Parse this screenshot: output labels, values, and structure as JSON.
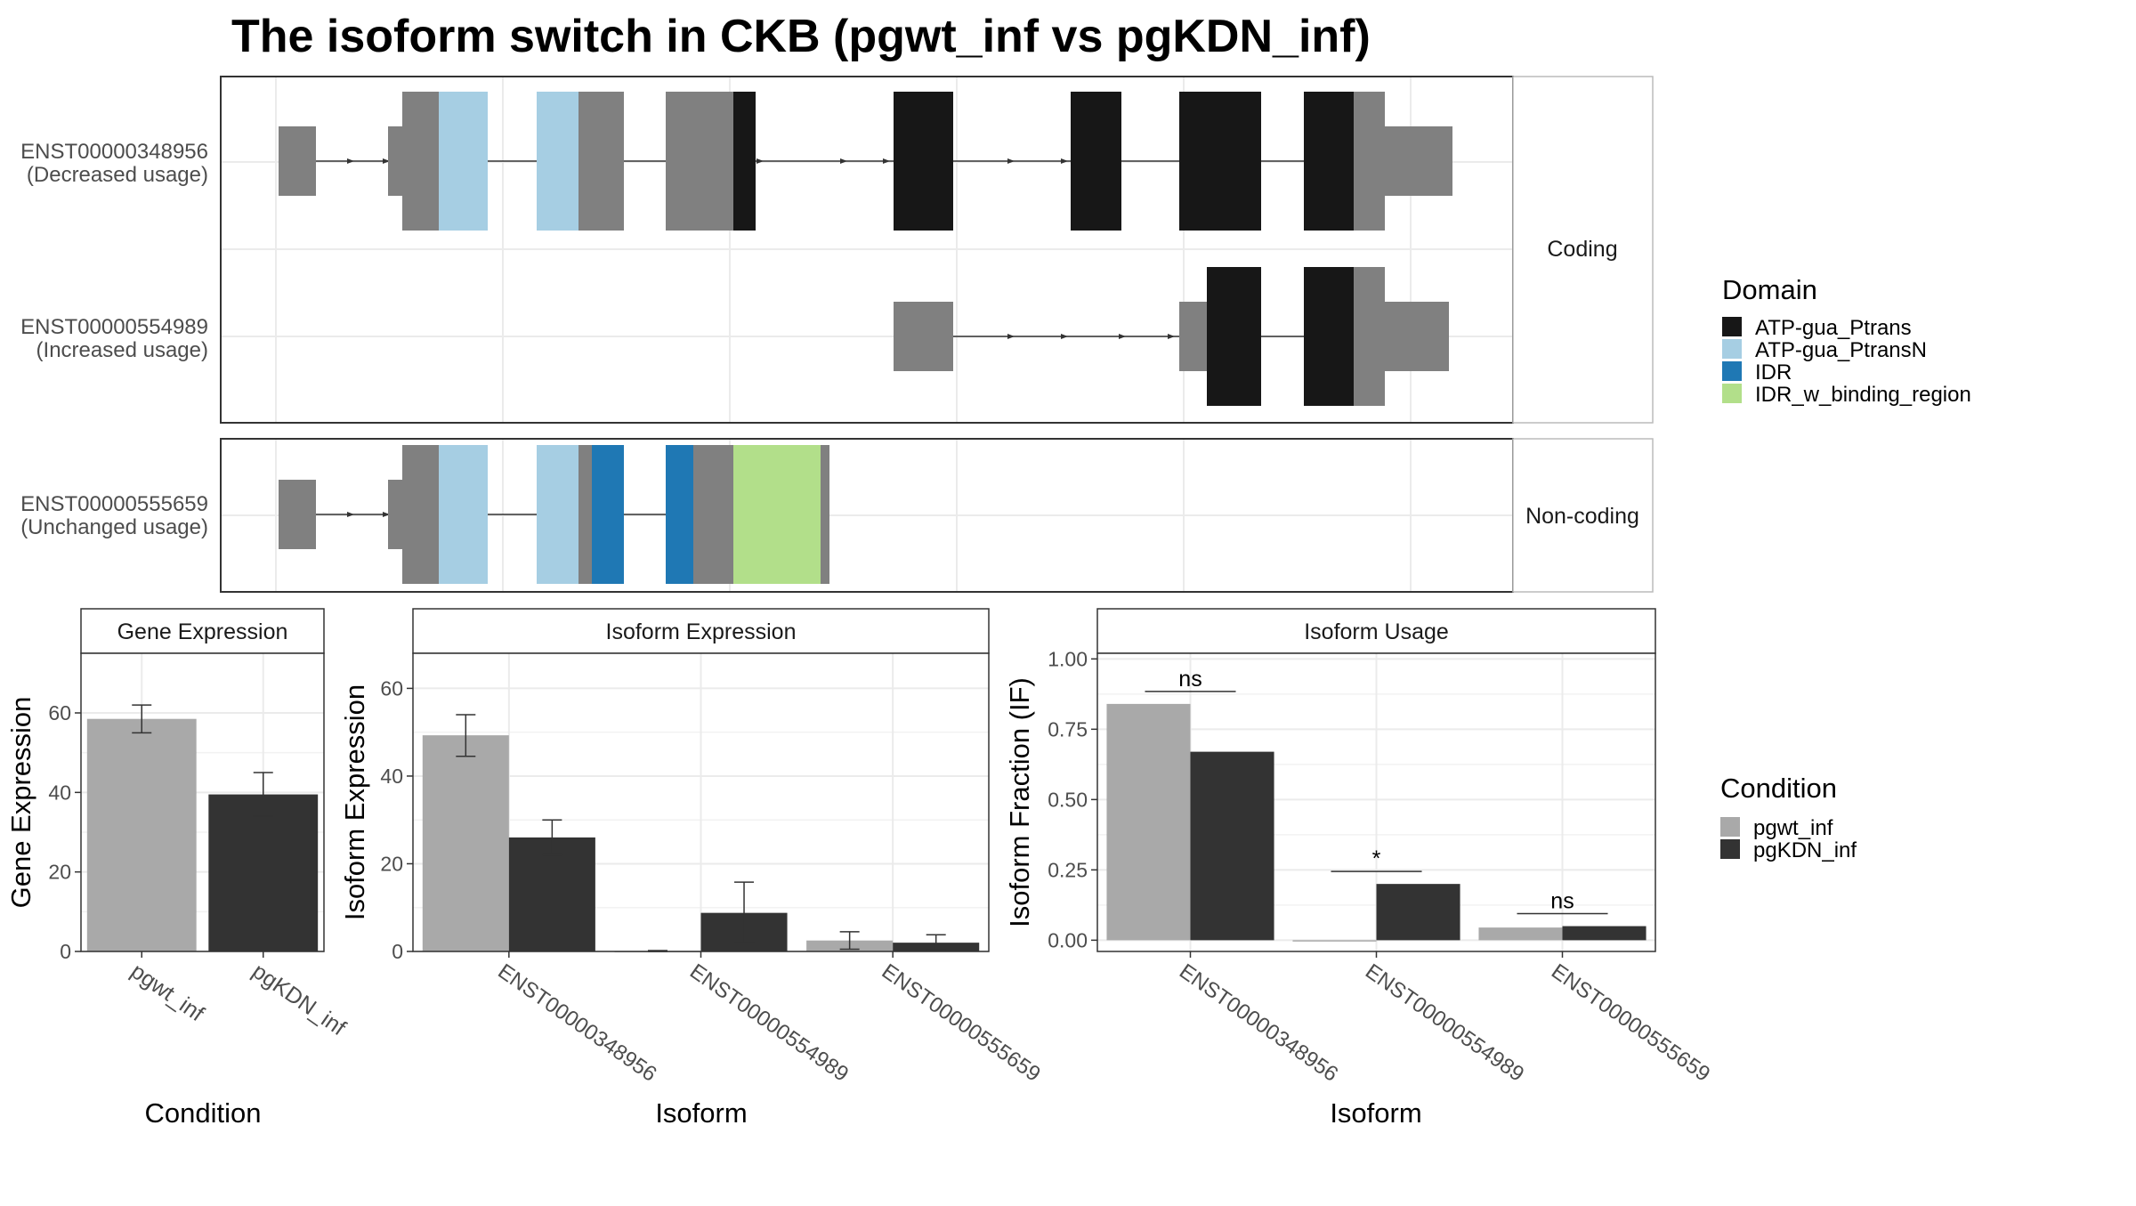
{
  "title": "The isoform switch in CKB (pgwt_inf vs pgKDN_inf)",
  "colors": {
    "ATP-gua_Ptrans": "#171717",
    "ATP-gua_PtransN": "#a6cee3",
    "IDR": "#1f78b4",
    "IDR_w_binding_region": "#b2df8a",
    "utr": "#808080",
    "pgwt_inf": "#a9a9a9",
    "pgKDN_inf": "#333333",
    "grid": "#ebebeb"
  },
  "structure": {
    "coding_strip": "Coding",
    "noncoding_strip": "Non-coding",
    "isoforms": [
      {
        "id": "ENST00000348956",
        "usage": "(Decreased usage)",
        "panel": "coding"
      },
      {
        "id": "ENST00000554989",
        "usage": "(Increased usage)",
        "panel": "coding"
      },
      {
        "id": "ENST00000555659",
        "usage": "(Unchanged usage)",
        "panel": "noncoding"
      }
    ]
  },
  "legends": {
    "domain": {
      "title": "Domain",
      "items": [
        "ATP-gua_Ptrans",
        "ATP-gua_PtransN",
        "IDR",
        "IDR_w_binding_region"
      ]
    },
    "condition": {
      "title": "Condition",
      "items": [
        "pgwt_inf",
        "pgKDN_inf"
      ]
    }
  },
  "chart_data": [
    {
      "type": "bar",
      "title": "Gene Expression",
      "xlabel": "Condition",
      "ylabel": "Gene Expression",
      "categories": [
        "pgwt_inf",
        "pgKDN_inf"
      ],
      "values": [
        58.5,
        39.5
      ],
      "error": [
        [
          55,
          62
        ],
        [
          34,
          45
        ]
      ],
      "ylim": [
        0,
        75
      ],
      "yticks": [
        0,
        20,
        40,
        60
      ]
    },
    {
      "type": "bar",
      "title": "Isoform Expression",
      "xlabel": "Isoform",
      "ylabel": "Isoform Expression",
      "categories": [
        "ENST00000348956",
        "ENST00000554989",
        "ENST00000555659"
      ],
      "series": [
        {
          "name": "pgwt_inf",
          "values": [
            49.3,
            0.1,
            2.5
          ],
          "error": [
            [
              44.5,
              54
            ],
            [
              0,
              0.2
            ],
            [
              0.5,
              4.5
            ]
          ]
        },
        {
          "name": "pgKDN_inf",
          "values": [
            26,
            8.8,
            2.0
          ],
          "error": [
            [
              22,
              30
            ],
            [
              2,
              15.8
            ],
            [
              0.3,
              3.8
            ]
          ]
        }
      ],
      "ylim": [
        0,
        68
      ],
      "yticks": [
        0,
        20,
        40,
        60
      ]
    },
    {
      "type": "bar",
      "title": "Isoform Usage",
      "xlabel": "Isoform",
      "ylabel": "Isoform Fraction (IF)",
      "categories": [
        "ENST00000348956",
        "ENST00000554989",
        "ENST00000555659"
      ],
      "series": [
        {
          "name": "pgwt_inf",
          "values": [
            0.84,
            0.0,
            0.045
          ]
        },
        {
          "name": "pgKDN_inf",
          "values": [
            0.67,
            0.2,
            0.05
          ]
        }
      ],
      "significance": [
        "ns",
        "*",
        "ns"
      ],
      "ylim": [
        -0.04,
        1.02
      ],
      "yticks": [
        "0.00",
        "0.25",
        "0.50",
        "0.75",
        "1.00"
      ]
    }
  ]
}
